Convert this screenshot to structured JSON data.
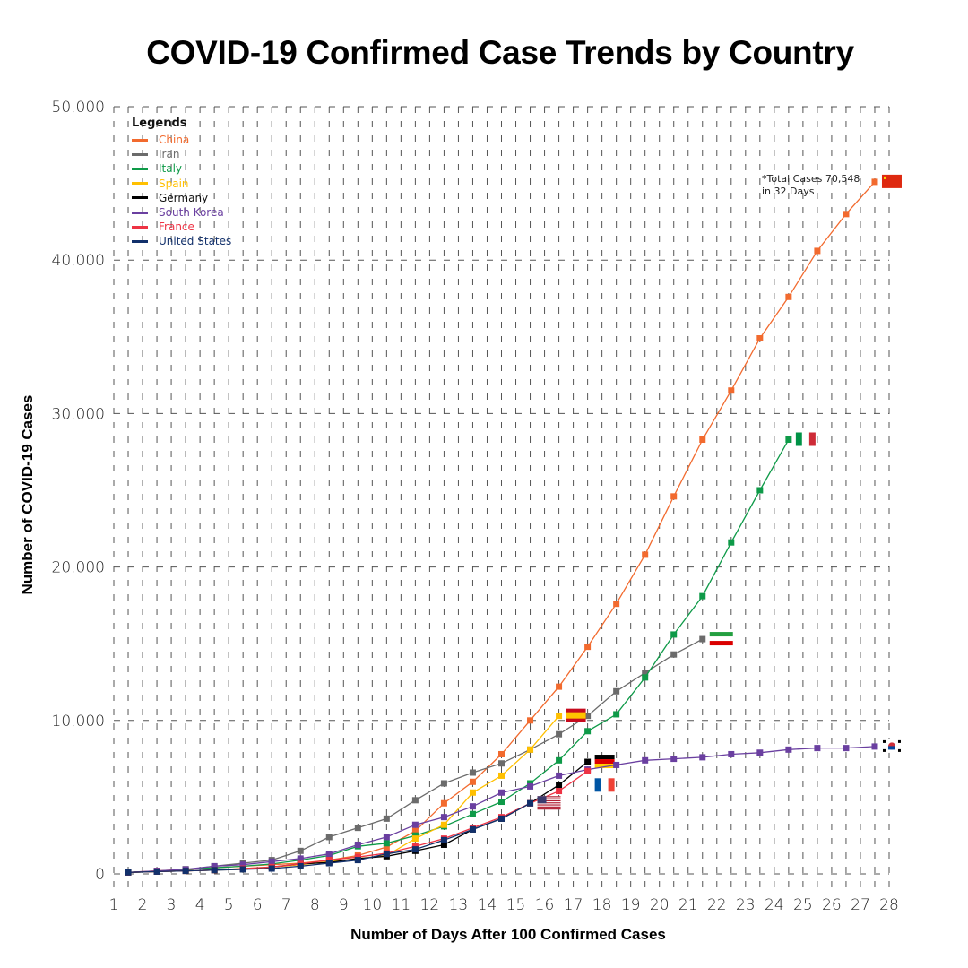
{
  "chart_data": {
    "type": "line",
    "title": "COVID-19 Confirmed Case Trends by Country",
    "xlabel": "Number of Days After 100 Confirmed Cases",
    "ylabel": "Number of COVID-19 Cases",
    "xlim": [
      1,
      28
    ],
    "ylim": [
      0,
      50000
    ],
    "x_ticks": [
      "1",
      "2",
      "3",
      "4",
      "5",
      "6",
      "7",
      "8",
      "9",
      "10",
      "11",
      "12",
      "13",
      "14",
      "15",
      "16",
      "17",
      "18",
      "19",
      "20",
      "21",
      "22",
      "23",
      "24",
      "25",
      "26",
      "27",
      "28"
    ],
    "y_ticks": [
      {
        "value": 0,
        "label": "0"
      },
      {
        "value": 10000,
        "label": "10,000"
      },
      {
        "value": 20000,
        "label": "20,000"
      },
      {
        "value": 30000,
        "label": "30,000"
      },
      {
        "value": 40000,
        "label": "40,000"
      },
      {
        "value": 50000,
        "label": "50,000"
      }
    ],
    "grid": true,
    "legend": {
      "title": "Legends",
      "placement": "top-left"
    },
    "annotation": {
      "series": "China",
      "lines": [
        "*Total Cases 70,548",
        "in 32 Days"
      ]
    },
    "series": [
      {
        "name": "China",
        "color": "#f26a2e",
        "flag": "china-flag",
        "x": [
          1.5,
          2.5,
          3.5,
          4.5,
          5.5,
          6.5,
          7.5,
          8.5,
          9.5,
          10.5,
          11.5,
          12.5,
          13.5,
          14.5,
          15.5,
          16.5,
          17.5,
          18.5,
          19.5,
          20.5,
          21.5,
          22.5,
          23.5,
          24.5,
          25.5,
          26.5,
          27.5
        ],
        "y": [
          100,
          200,
          300,
          400,
          500,
          600,
          700,
          900,
          1200,
          1750,
          2800,
          4600,
          6000,
          7800,
          10000,
          12200,
          14800,
          17600,
          20800,
          24600,
          28300,
          31500,
          34900,
          37600,
          40600,
          43000,
          45100
        ]
      },
      {
        "name": "Iran",
        "color": "#6b6b6b",
        "flag": "iran-flag",
        "x": [
          1.5,
          2.5,
          3.5,
          4.5,
          5.5,
          6.5,
          7.5,
          8.5,
          9.5,
          10.5,
          11.5,
          12.5,
          13.5,
          14.5,
          15.5,
          16.5,
          17.5,
          18.5,
          19.5,
          20.5,
          21.5
        ],
        "y": [
          100,
          150,
          250,
          500,
          700,
          900,
          1500,
          2400,
          3000,
          3600,
          4800,
          5900,
          6600,
          7200,
          8100,
          9100,
          10300,
          11900,
          13100,
          14300,
          15300
        ]
      },
      {
        "name": "Italy",
        "color": "#0e9a48",
        "flag": "italy-flag",
        "x": [
          1.5,
          2.5,
          3.5,
          4.5,
          5.5,
          6.5,
          7.5,
          8.5,
          9.5,
          10.5,
          11.5,
          12.5,
          13.5,
          14.5,
          15.5,
          16.5,
          17.5,
          18.5,
          19.5,
          20.5,
          21.5,
          22.5,
          23.5,
          24.5
        ],
        "y": [
          100,
          150,
          300,
          400,
          500,
          650,
          900,
          1200,
          1800,
          2000,
          2500,
          3100,
          3900,
          4700,
          5900,
          7400,
          9300,
          10400,
          12800,
          15600,
          18100,
          21600,
          25000,
          28300
        ]
      },
      {
        "name": "Spain",
        "color": "#ffc000",
        "flag": "spain-flag",
        "x": [
          1.5,
          2.5,
          3.5,
          4.5,
          5.5,
          6.5,
          7.5,
          8.5,
          9.5,
          10.5,
          11.5,
          12.5,
          13.5,
          14.5,
          15.5,
          16.5
        ],
        "y": [
          100,
          150,
          200,
          250,
          350,
          450,
          600,
          800,
          1000,
          1200,
          2300,
          3200,
          5300,
          6400,
          8100,
          10300
        ]
      },
      {
        "name": "Germany",
        "color": "#000000",
        "flag": "germany-flag",
        "x": [
          1.5,
          2.5,
          3.5,
          4.5,
          5.5,
          6.5,
          7.5,
          8.5,
          9.5,
          10.5,
          11.5,
          12.5,
          13.5,
          14.5,
          15.5,
          16.5,
          17.5
        ],
        "y": [
          100,
          150,
          200,
          250,
          300,
          450,
          650,
          750,
          1000,
          1150,
          1500,
          1900,
          2900,
          3600,
          4600,
          5800,
          7300
        ]
      },
      {
        "name": "South Korea",
        "color": "#6a3fa0",
        "flag": "south-korea-flag",
        "x": [
          1.5,
          2.5,
          3.5,
          4.5,
          5.5,
          6.5,
          7.5,
          8.5,
          9.5,
          10.5,
          11.5,
          12.5,
          13.5,
          14.5,
          15.5,
          16.5,
          17.5,
          18.5,
          19.5,
          20.5,
          21.5,
          22.5,
          23.5,
          24.5,
          25.5,
          26.5,
          27.5
        ],
        "y": [
          100,
          200,
          300,
          500,
          600,
          800,
          1000,
          1300,
          1900,
          2400,
          3200,
          3700,
          4400,
          5300,
          5700,
          6400,
          6800,
          7100,
          7400,
          7500,
          7600,
          7800,
          7900,
          8100,
          8200,
          8200,
          8300
        ]
      },
      {
        "name": "France",
        "color": "#ee3344",
        "flag": "france-flag",
        "x": [
          1.5,
          2.5,
          3.5,
          4.5,
          5.5,
          6.5,
          7.5,
          8.5,
          9.5,
          10.5,
          11.5,
          12.5,
          13.5,
          14.5,
          15.5,
          16.5,
          17.5
        ],
        "y": [
          100,
          150,
          200,
          250,
          350,
          450,
          650,
          900,
          1100,
          1350,
          1800,
          2300,
          3000,
          3700,
          4600,
          5400,
          6700
        ]
      },
      {
        "name": "United States",
        "color": "#12306b",
        "flag": "usa-flag",
        "x": [
          1.5,
          2.5,
          3.5,
          4.5,
          5.5,
          6.5,
          7.5,
          8.5,
          9.5,
          10.5,
          11.5,
          12.5,
          13.5,
          14.5,
          15.5
        ],
        "y": [
          100,
          150,
          200,
          250,
          300,
          350,
          500,
          700,
          900,
          1300,
          1600,
          2200,
          2900,
          3600,
          4600
        ]
      }
    ]
  }
}
